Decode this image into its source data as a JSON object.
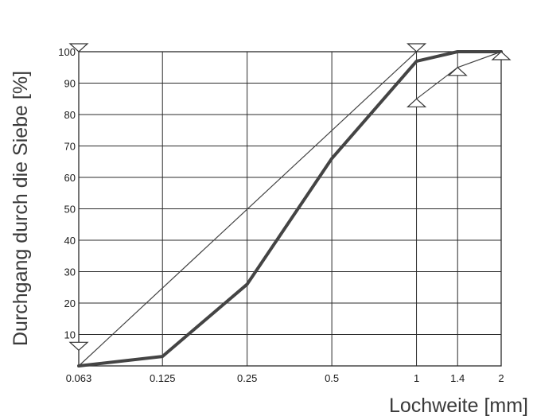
{
  "chart_data": {
    "type": "line",
    "title": "",
    "xlabel": "Lochweite [mm]",
    "ylabel": "Durchgang durch die Siebe [%]",
    "x_ticks": [
      "0.063",
      "0.125",
      "0.25",
      "0.5",
      "1",
      "1.4",
      "2"
    ],
    "x_scale": "log2",
    "ylim": [
      0,
      100
    ],
    "y_ticks": [
      10,
      20,
      30,
      40,
      50,
      60,
      70,
      80,
      90,
      100
    ],
    "grid": true,
    "legend": "none",
    "series": [
      {
        "style": "thick",
        "color": "#444444",
        "points": [
          [
            0.063,
            0
          ],
          [
            0.125,
            3
          ],
          [
            0.25,
            26
          ],
          [
            0.5,
            66
          ],
          [
            1,
            97
          ],
          [
            1.4,
            100
          ],
          [
            2,
            100
          ]
        ]
      },
      {
        "style": "thin",
        "color": "#444444",
        "points": [
          [
            0.063,
            0
          ],
          [
            1,
            100
          ]
        ]
      },
      {
        "style": "thin",
        "color": "#444444",
        "points": [
          [
            1,
            85
          ],
          [
            1.4,
            95
          ],
          [
            2,
            100
          ]
        ]
      }
    ],
    "limit_markers": [
      {
        "x": 0.063,
        "y": 100,
        "direction": "down"
      },
      {
        "x": 0.063,
        "y": 5,
        "direction": "down"
      },
      {
        "x": 1,
        "y": 100,
        "direction": "down"
      },
      {
        "x": 1,
        "y": 85,
        "direction": "up"
      },
      {
        "x": 1.4,
        "y": 95,
        "direction": "up"
      },
      {
        "x": 2,
        "y": 100,
        "direction": "up"
      }
    ]
  }
}
